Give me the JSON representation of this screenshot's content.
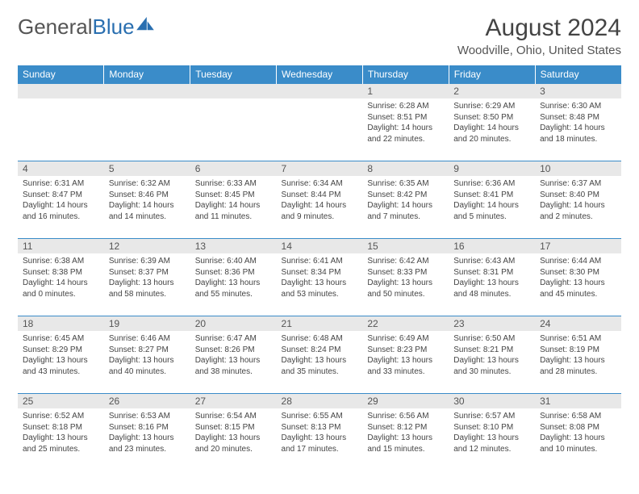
{
  "brand": {
    "part1": "General",
    "part2": "Blue",
    "text_color": "#555555",
    "accent_color": "#2a6fb0"
  },
  "title": "August 2024",
  "location": "Woodville, Ohio, United States",
  "header_bg": "#3a8cc9",
  "daynum_bg": "#e8e8e8",
  "rule_color": "#3a8cc9",
  "days_of_week": [
    "Sunday",
    "Monday",
    "Tuesday",
    "Wednesday",
    "Thursday",
    "Friday",
    "Saturday"
  ],
  "weeks": [
    [
      null,
      null,
      null,
      null,
      {
        "n": "1",
        "sunrise": "6:28 AM",
        "sunset": "8:51 PM",
        "dl": "14 hours and 22 minutes."
      },
      {
        "n": "2",
        "sunrise": "6:29 AM",
        "sunset": "8:50 PM",
        "dl": "14 hours and 20 minutes."
      },
      {
        "n": "3",
        "sunrise": "6:30 AM",
        "sunset": "8:48 PM",
        "dl": "14 hours and 18 minutes."
      }
    ],
    [
      {
        "n": "4",
        "sunrise": "6:31 AM",
        "sunset": "8:47 PM",
        "dl": "14 hours and 16 minutes."
      },
      {
        "n": "5",
        "sunrise": "6:32 AM",
        "sunset": "8:46 PM",
        "dl": "14 hours and 14 minutes."
      },
      {
        "n": "6",
        "sunrise": "6:33 AM",
        "sunset": "8:45 PM",
        "dl": "14 hours and 11 minutes."
      },
      {
        "n": "7",
        "sunrise": "6:34 AM",
        "sunset": "8:44 PM",
        "dl": "14 hours and 9 minutes."
      },
      {
        "n": "8",
        "sunrise": "6:35 AM",
        "sunset": "8:42 PM",
        "dl": "14 hours and 7 minutes."
      },
      {
        "n": "9",
        "sunrise": "6:36 AM",
        "sunset": "8:41 PM",
        "dl": "14 hours and 5 minutes."
      },
      {
        "n": "10",
        "sunrise": "6:37 AM",
        "sunset": "8:40 PM",
        "dl": "14 hours and 2 minutes."
      }
    ],
    [
      {
        "n": "11",
        "sunrise": "6:38 AM",
        "sunset": "8:38 PM",
        "dl": "14 hours and 0 minutes."
      },
      {
        "n": "12",
        "sunrise": "6:39 AM",
        "sunset": "8:37 PM",
        "dl": "13 hours and 58 minutes."
      },
      {
        "n": "13",
        "sunrise": "6:40 AM",
        "sunset": "8:36 PM",
        "dl": "13 hours and 55 minutes."
      },
      {
        "n": "14",
        "sunrise": "6:41 AM",
        "sunset": "8:34 PM",
        "dl": "13 hours and 53 minutes."
      },
      {
        "n": "15",
        "sunrise": "6:42 AM",
        "sunset": "8:33 PM",
        "dl": "13 hours and 50 minutes."
      },
      {
        "n": "16",
        "sunrise": "6:43 AM",
        "sunset": "8:31 PM",
        "dl": "13 hours and 48 minutes."
      },
      {
        "n": "17",
        "sunrise": "6:44 AM",
        "sunset": "8:30 PM",
        "dl": "13 hours and 45 minutes."
      }
    ],
    [
      {
        "n": "18",
        "sunrise": "6:45 AM",
        "sunset": "8:29 PM",
        "dl": "13 hours and 43 minutes."
      },
      {
        "n": "19",
        "sunrise": "6:46 AM",
        "sunset": "8:27 PM",
        "dl": "13 hours and 40 minutes."
      },
      {
        "n": "20",
        "sunrise": "6:47 AM",
        "sunset": "8:26 PM",
        "dl": "13 hours and 38 minutes."
      },
      {
        "n": "21",
        "sunrise": "6:48 AM",
        "sunset": "8:24 PM",
        "dl": "13 hours and 35 minutes."
      },
      {
        "n": "22",
        "sunrise": "6:49 AM",
        "sunset": "8:23 PM",
        "dl": "13 hours and 33 minutes."
      },
      {
        "n": "23",
        "sunrise": "6:50 AM",
        "sunset": "8:21 PM",
        "dl": "13 hours and 30 minutes."
      },
      {
        "n": "24",
        "sunrise": "6:51 AM",
        "sunset": "8:19 PM",
        "dl": "13 hours and 28 minutes."
      }
    ],
    [
      {
        "n": "25",
        "sunrise": "6:52 AM",
        "sunset": "8:18 PM",
        "dl": "13 hours and 25 minutes."
      },
      {
        "n": "26",
        "sunrise": "6:53 AM",
        "sunset": "8:16 PM",
        "dl": "13 hours and 23 minutes."
      },
      {
        "n": "27",
        "sunrise": "6:54 AM",
        "sunset": "8:15 PM",
        "dl": "13 hours and 20 minutes."
      },
      {
        "n": "28",
        "sunrise": "6:55 AM",
        "sunset": "8:13 PM",
        "dl": "13 hours and 17 minutes."
      },
      {
        "n": "29",
        "sunrise": "6:56 AM",
        "sunset": "8:12 PM",
        "dl": "13 hours and 15 minutes."
      },
      {
        "n": "30",
        "sunrise": "6:57 AM",
        "sunset": "8:10 PM",
        "dl": "13 hours and 12 minutes."
      },
      {
        "n": "31",
        "sunrise": "6:58 AM",
        "sunset": "8:08 PM",
        "dl": "13 hours and 10 minutes."
      }
    ]
  ]
}
